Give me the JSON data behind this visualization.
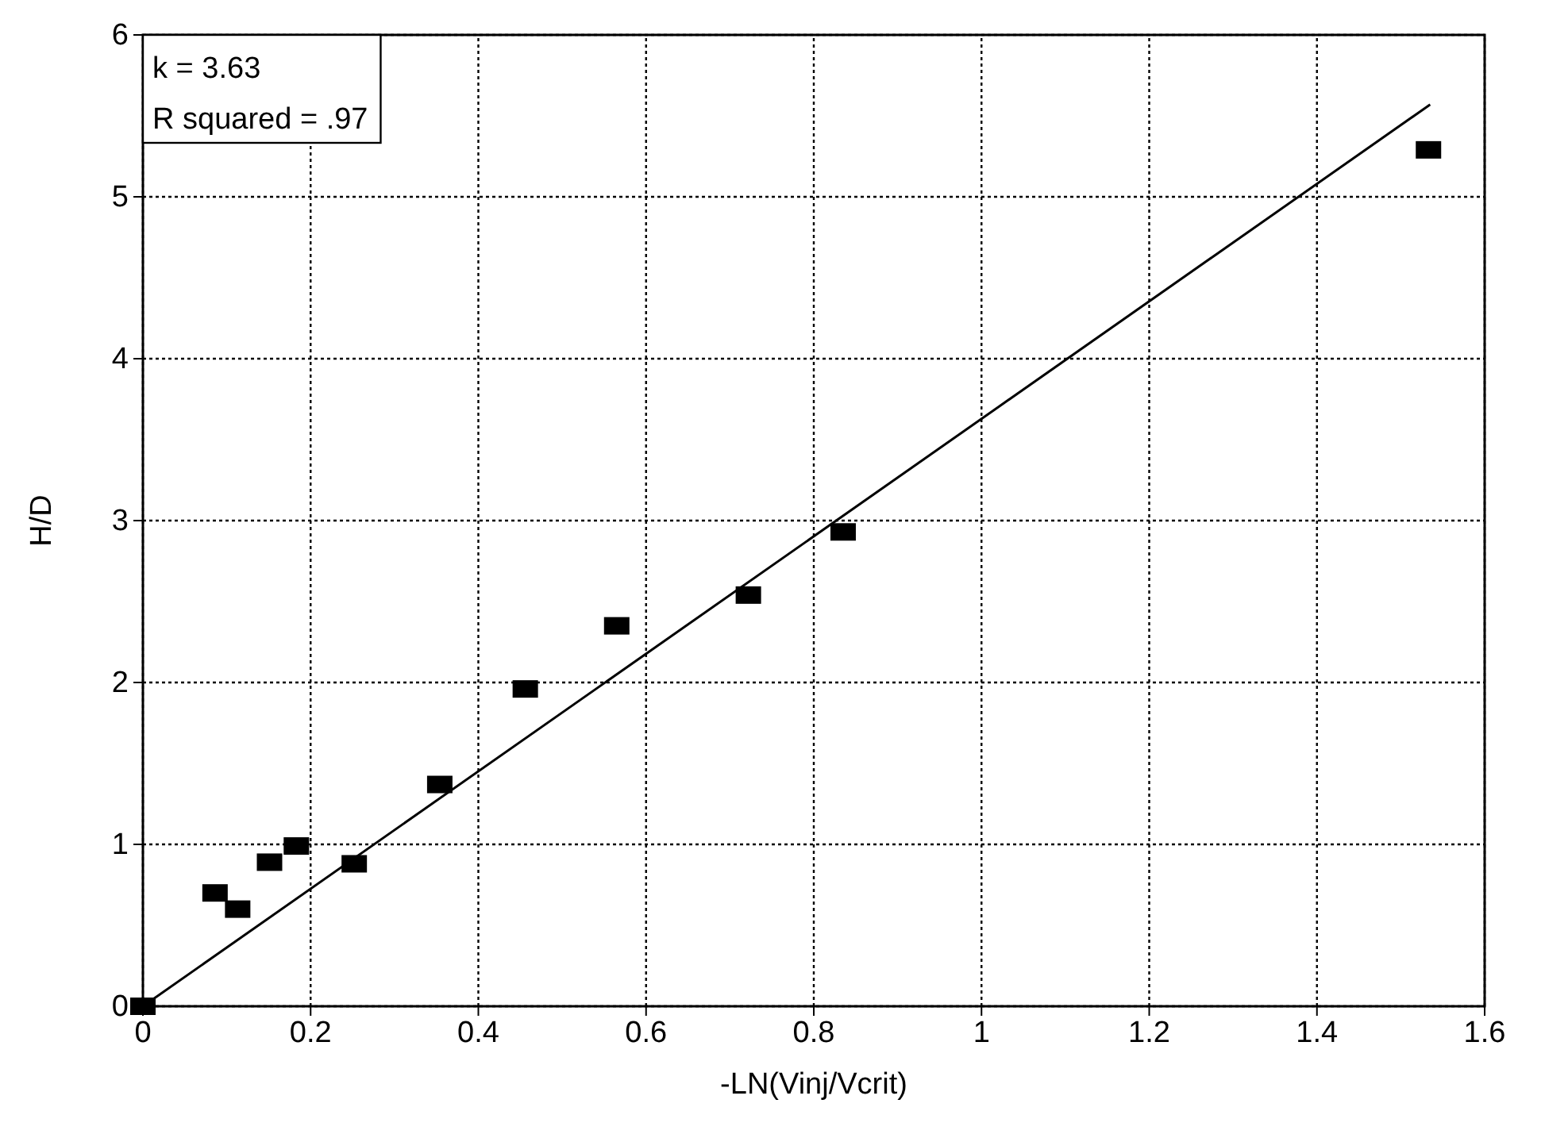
{
  "chart_data": {
    "type": "scatter",
    "xlabel": "-LN(Vinj/Vcrit)",
    "ylabel": "H/D",
    "annotations": [
      "k = 3.63",
      "R squared = .97"
    ],
    "xlim": [
      0,
      1.6
    ],
    "xticks": [
      0,
      0.2,
      0.4,
      0.6,
      0.8,
      1,
      1.2,
      1.4,
      1.6
    ],
    "ylim": [
      0,
      6
    ],
    "yticks": [
      0,
      1,
      2,
      3,
      4,
      5,
      6
    ],
    "grid": true,
    "marker": "square",
    "series": [
      {
        "color": "#000000",
        "x": [
          0,
          0.086,
          0.113,
          0.151,
          0.183,
          0.252,
          0.354,
          0.456,
          0.565,
          0.722,
          0.835,
          1.533
        ],
        "values": [
          0,
          0.7,
          0.6,
          0.89,
          0.99,
          0.88,
          1.37,
          1.96,
          2.35,
          2.54,
          2.93,
          5.29
        ]
      },
      {
        "type": "line",
        "color": "#000000",
        "marker": "none",
        "line_style": "solid",
        "x": [
          0,
          1.535
        ],
        "values": [
          0,
          5.57
        ]
      }
    ]
  }
}
